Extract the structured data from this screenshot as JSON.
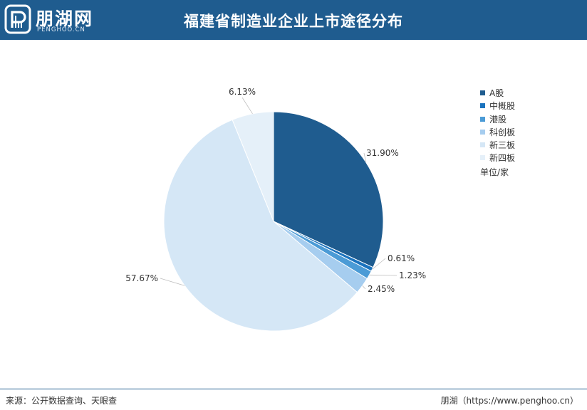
{
  "header": {
    "logo_text": "朋湖网",
    "logo_sub": "PENGHOO.CN",
    "title": "福建省制造业企业上市途径分布"
  },
  "legend": {
    "unit": "单位/家"
  },
  "footer": {
    "source": "来源：公开数据查询、天眼查",
    "brand": "朋湖（https://www.penghoo.cn）"
  },
  "colors": {
    "header_bg": "#1f5c8f",
    "series": [
      "#1f5c8f",
      "#1a73be",
      "#4b9bd6",
      "#a6cdef",
      "#d5e7f6",
      "#e5f0f9"
    ]
  },
  "chart_data": {
    "type": "pie",
    "title": "福建省制造业企业上市途径分布",
    "unit": "单位/家",
    "legend_position": "right",
    "categories": [
      "A股",
      "中概股",
      "港股",
      "科创板",
      "新三板",
      "新四板"
    ],
    "values": [
      31.9,
      0.61,
      1.23,
      2.45,
      57.67,
      6.13
    ],
    "labels": [
      "31.90%",
      "0.61%",
      "1.23%",
      "2.45%",
      "57.67%",
      "6.13%"
    ]
  }
}
